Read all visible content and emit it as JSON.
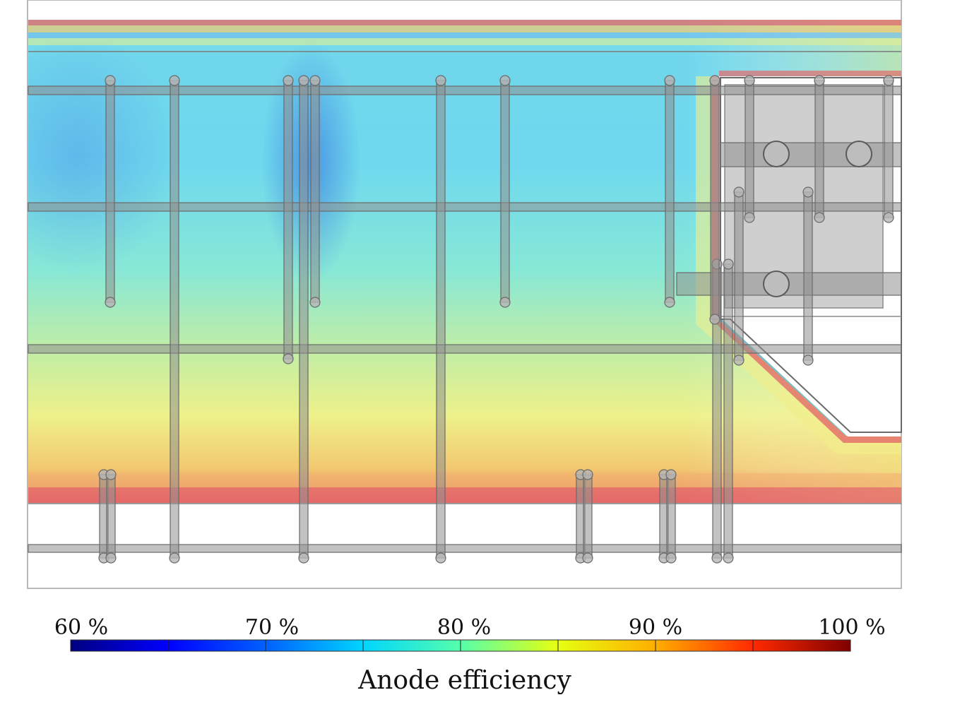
{
  "colorbar": {
    "title": "Anode efficiency",
    "ticks": [
      "60 %",
      "70 %",
      "80 %",
      "90 %",
      "100 %"
    ],
    "min": 60,
    "max": 100,
    "colormap": "jet",
    "stops": [
      "#00007f",
      "#0000ff",
      "#007fff",
      "#00ffff",
      "#7fff7f",
      "#ffff00",
      "#ff7f00",
      "#ff0000",
      "#7f0000"
    ]
  },
  "field": {
    "colors": {
      "low": "#5ab8e8",
      "mid": "#7fe8e8",
      "green": "#b5ecb0",
      "yellow": "#f4ef86",
      "high": "#e46a6a"
    }
  },
  "structure": {
    "pipe_color": "#8f8f8f",
    "pipe_outline": "#6a6a6a",
    "block_color": "#cfcfcf"
  }
}
